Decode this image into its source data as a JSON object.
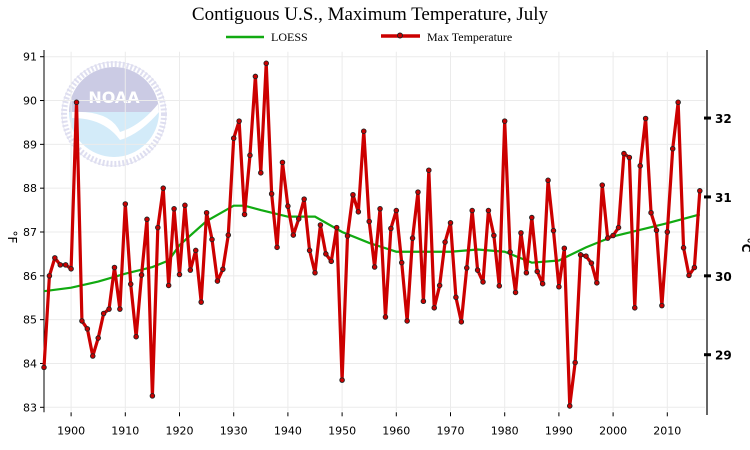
{
  "chart_data": {
    "type": "line",
    "title": "Contiguous U.S., Maximum Temperature, July",
    "ylabel": "°F",
    "ylabel_right": "°C",
    "xlabel": "",
    "xlim": [
      1895,
      2017
    ],
    "ylim": [
      83,
      91
    ],
    "ylim_right_celsius": [
      28.33,
      32.78
    ],
    "x_ticks": [
      "1900",
      "1910",
      "1920",
      "1930",
      "1940",
      "1950",
      "1960",
      "1970",
      "1980",
      "1990",
      "2000",
      "2010"
    ],
    "y_ticks": [
      "83",
      "84",
      "85",
      "86",
      "87",
      "88",
      "89",
      "90",
      "91"
    ],
    "y_ticks_right": [
      "29",
      "30",
      "31",
      "32"
    ],
    "grid": true,
    "legend_position": "top",
    "watermark": "NOAA — National Oceanic and Atmospheric Administration — U.S. Department of Commerce",
    "colors": {
      "max_temperature": "#cc0000",
      "loess": "#11aa11",
      "grid": "#ebebeb"
    },
    "series": [
      {
        "name": "Max Temperature",
        "x": [
          1895,
          1896,
          1897,
          1898,
          1899,
          1900,
          1901,
          1902,
          1903,
          1904,
          1905,
          1906,
          1907,
          1908,
          1909,
          1910,
          1911,
          1912,
          1913,
          1914,
          1915,
          1916,
          1917,
          1918,
          1919,
          1920,
          1921,
          1922,
          1923,
          1924,
          1925,
          1926,
          1927,
          1928,
          1929,
          1930,
          1931,
          1932,
          1933,
          1934,
          1935,
          1936,
          1937,
          1938,
          1939,
          1940,
          1941,
          1942,
          1943,
          1944,
          1945,
          1946,
          1947,
          1948,
          1949,
          1950,
          1951,
          1952,
          1953,
          1954,
          1955,
          1956,
          1957,
          1958,
          1959,
          1960,
          1961,
          1962,
          1963,
          1964,
          1965,
          1966,
          1967,
          1968,
          1969,
          1970,
          1971,
          1972,
          1973,
          1974,
          1975,
          1976,
          1977,
          1978,
          1979,
          1980,
          1981,
          1982,
          1983,
          1984,
          1985,
          1986,
          1987,
          1988,
          1989,
          1990,
          1991,
          1992,
          1993,
          1994,
          1995,
          1996,
          1997,
          1998,
          1999,
          2000,
          2001,
          2002,
          2003,
          2004,
          2005,
          2006,
          2007,
          2008,
          2009,
          2010,
          2011,
          2012,
          2013,
          2014,
          2015,
          2016
        ],
        "values": [
          83.91,
          86.0,
          86.41,
          86.25,
          86.25,
          86.16,
          89.96,
          84.97,
          84.79,
          84.17,
          84.58,
          85.14,
          85.24,
          86.19,
          85.24,
          87.64,
          85.81,
          84.61,
          86.02,
          87.29,
          83.26,
          87.1,
          88.0,
          85.78,
          87.53,
          86.03,
          87.61,
          86.13,
          86.58,
          85.4,
          87.44,
          86.83,
          85.88,
          86.15,
          86.93,
          89.14,
          89.53,
          87.4,
          88.75,
          90.55,
          88.35,
          90.85,
          87.87,
          86.65,
          88.59,
          87.59,
          86.93,
          87.3,
          87.75,
          86.58,
          86.07,
          87.16,
          86.5,
          86.33,
          87.1,
          83.62,
          86.91,
          87.85,
          87.46,
          89.3,
          87.24,
          86.2,
          87.53,
          85.06,
          87.08,
          87.49,
          86.3,
          84.97,
          86.86,
          87.91,
          85.42,
          88.41,
          85.27,
          85.78,
          86.77,
          87.21,
          85.51,
          84.95,
          86.18,
          87.49,
          86.13,
          85.86,
          87.49,
          86.92,
          85.77,
          89.53,
          86.54,
          85.62,
          86.98,
          86.07,
          87.33,
          86.1,
          85.82,
          88.18,
          87.03,
          85.75,
          86.63,
          83.03,
          84.02,
          86.48,
          86.45,
          86.29,
          85.84,
          88.07,
          86.86,
          86.92,
          87.1,
          88.79,
          88.7,
          85.27,
          88.51,
          89.59,
          87.44,
          87.04,
          85.32,
          87.0,
          88.9,
          89.96,
          86.64,
          86.01,
          86.19,
          87.94
        ]
      },
      {
        "name": "LOESS",
        "x": [
          1895,
          1900,
          1905,
          1910,
          1915,
          1918,
          1920,
          1925,
          1930,
          1932,
          1935,
          1940,
          1945,
          1950,
          1955,
          1960,
          1965,
          1970,
          1975,
          1980,
          1985,
          1990,
          1995,
          2000,
          2005,
          2010,
          2016
        ],
        "values": [
          85.65,
          85.73,
          85.87,
          86.05,
          86.2,
          86.35,
          86.7,
          87.25,
          87.6,
          87.6,
          87.5,
          87.35,
          87.35,
          87.0,
          86.75,
          86.55,
          86.55,
          86.55,
          86.6,
          86.55,
          86.3,
          86.35,
          86.65,
          86.9,
          87.05,
          87.2,
          87.4
        ]
      }
    ]
  }
}
